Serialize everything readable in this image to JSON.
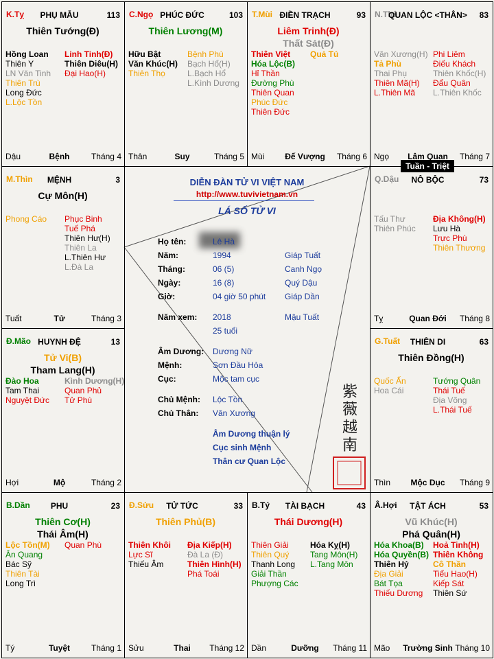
{
  "palaces": [
    {
      "stem": {
        "text": "K.Tỵ",
        "color": "#e00000"
      },
      "name": "PHỤ MẪU",
      "number": 113,
      "main_stars": [
        {
          "text": "Thiên Tướng(Đ)",
          "color": "#000000"
        }
      ],
      "left_stars": [
        {
          "text": "Hồng Loan",
          "color": "#000000",
          "bold": true
        },
        {
          "text": "Thiên Y",
          "color": "#000000"
        },
        {
          "text": "LN Văn Tinh",
          "color": "#8c8c8c"
        },
        {
          "text": "Thiên Trù",
          "color": "#f0a000"
        },
        {
          "text": "Long Đức",
          "color": "#000000"
        },
        {
          "text": "L.Lộc Tồn",
          "color": "#f0a000"
        }
      ],
      "right_stars": [
        {
          "text": "Linh Tinh(Đ)",
          "color": "#e00000",
          "bold": true
        },
        {
          "text": "Thiên Diêu(H)",
          "color": "#000000",
          "bold": true
        },
        {
          "text": "Đại Hao(H)",
          "color": "#e00000"
        }
      ],
      "branch": "Dậu",
      "stage": "Bệnh",
      "month": "Tháng 4"
    },
    {
      "stem": {
        "text": "C.Ngọ",
        "color": "#e00000"
      },
      "name": "PHÚC ĐỨC",
      "number": 103,
      "main_stars": [
        {
          "text": "Thiên Lương(M)",
          "color": "#008000"
        }
      ],
      "left_stars": [
        {
          "text": "Hữu Bật",
          "color": "#000000",
          "bold": true
        },
        {
          "text": "Văn Khúc(H)",
          "color": "#000000",
          "bold": true
        },
        {
          "text": "Thiên Thọ",
          "color": "#f0a000"
        }
      ],
      "right_stars": [
        {
          "text": "Bệnh Phù",
          "color": "#f0a000"
        },
        {
          "text": "Bạch Hổ(H)",
          "color": "#8c8c8c"
        },
        {
          "text": "L.Bạch Hổ",
          "color": "#8c8c8c"
        },
        {
          "text": "L.Kình Dương",
          "color": "#8c8c8c"
        }
      ],
      "branch": "Thân",
      "stage": "Suy",
      "month": "Tháng 5"
    },
    {
      "stem": {
        "text": "T.Mùi",
        "color": "#f0a000"
      },
      "name": "ĐIỀN TRẠCH",
      "number": 93,
      "main_stars": [
        {
          "text": "Liêm Trinh(Đ)",
          "color": "#e00000"
        },
        {
          "text": "Thất Sát(Đ)",
          "color": "#8c8c8c"
        }
      ],
      "left_stars": [
        {
          "text": "Thiên Việt",
          "color": "#e00000",
          "bold": true
        },
        {
          "text": "Hóa Lộc(B)",
          "color": "#008000",
          "bold": true
        },
        {
          "text": "Hỉ Thần",
          "color": "#e00000"
        },
        {
          "text": "Đường Phù",
          "color": "#008000"
        },
        {
          "text": "Thiên Quan",
          "color": "#e00000"
        },
        {
          "text": "Phúc Đức",
          "color": "#f0a000"
        },
        {
          "text": "Thiên Đức",
          "color": "#e00000"
        }
      ],
      "right_stars": [
        {
          "text": "Quả Tú",
          "color": "#f0a000",
          "bold": true
        }
      ],
      "branch": "Mùi",
      "stage": "Đế Vượng",
      "month": "Tháng 6"
    },
    {
      "stem": {
        "text": "N.Thâ",
        "color": "#8c8c8c"
      },
      "name": "QUAN LỘC <THÂN>",
      "number": 83,
      "main_stars": [],
      "left_stars": [
        {
          "text": "Văn Xương(H)",
          "color": "#8c8c8c"
        },
        {
          "text": "Tả Phù",
          "color": "#f0a000",
          "bold": true
        },
        {
          "text": "Thai Phụ",
          "color": "#8c8c8c"
        },
        {
          "text": "Thiên Mã(H)",
          "color": "#e00000"
        },
        {
          "text": "L.Thiên Mã",
          "color": "#e00000"
        }
      ],
      "right_stars": [
        {
          "text": "Phi Liêm",
          "color": "#e00000"
        },
        {
          "text": "Điếu Khách",
          "color": "#e00000"
        },
        {
          "text": "Thiên Khốc(H)",
          "color": "#8c8c8c"
        },
        {
          "text": "Đẩu Quân",
          "color": "#e00000"
        },
        {
          "text": "L.Thiên Khốc",
          "color": "#8c8c8c"
        }
      ],
      "branch": "Ngọ",
      "stage": "Lâm Quan",
      "month": "Tháng 7"
    },
    {
      "stem": {
        "text": "M.Thìn",
        "color": "#f0a000"
      },
      "name": "MỆNH",
      "number": 3,
      "main_stars": [
        {
          "text": "Cự Môn(H)",
          "color": "#000000"
        }
      ],
      "left_stars": [
        {
          "text": "Phong Cáo",
          "color": "#f0a000"
        }
      ],
      "right_stars": [
        {
          "text": "Phục Binh",
          "color": "#e00000"
        },
        {
          "text": "Tuế Phá",
          "color": "#e00000"
        },
        {
          "text": "Thiên Hư(H)",
          "color": "#000000"
        },
        {
          "text": "Thiên La",
          "color": "#8c8c8c"
        },
        {
          "text": "L.Thiên Hư",
          "color": "#000000"
        },
        {
          "text": "L.Đà La",
          "color": "#8c8c8c"
        }
      ],
      "branch": "Tuất",
      "stage": "Tử",
      "month": "Tháng 3"
    },
    {
      "stem": {
        "text": "Q.Dậu",
        "color": "#8c8c8c"
      },
      "name": "NÔ BỘC",
      "number": 73,
      "main_stars": [],
      "left_stars": [
        {
          "text": "Tấu Thư",
          "color": "#8c8c8c"
        },
        {
          "text": "Thiên Phúc",
          "color": "#8c8c8c"
        }
      ],
      "right_stars": [
        {
          "text": "Địa Không(H)",
          "color": "#e00000",
          "bold": true
        },
        {
          "text": "Lưu Hà",
          "color": "#000000"
        },
        {
          "text": "Trực Phù",
          "color": "#e00000"
        },
        {
          "text": "Thiên Thương",
          "color": "#f0a000"
        }
      ],
      "branch": "Tỵ",
      "stage": "Quan Đới",
      "month": "Tháng 8"
    },
    {
      "stem": {
        "text": "Đ.Mão",
        "color": "#008000"
      },
      "name": "HUYNH ĐỆ",
      "number": 13,
      "main_stars": [
        {
          "text": "Tử Vi(B)",
          "color": "#f0a000"
        },
        {
          "text": "Tham Lang(H)",
          "color": "#000000"
        }
      ],
      "left_stars": [
        {
          "text": "Đào Hoa",
          "color": "#008000",
          "bold": true
        },
        {
          "text": "Tam Thai",
          "color": "#000000"
        },
        {
          "text": "Nguyệt Đức",
          "color": "#e00000"
        }
      ],
      "right_stars": [
        {
          "text": "Kình Dương(H)",
          "color": "#8c8c8c",
          "bold": true
        },
        {
          "text": "Quan Phủ",
          "color": "#e00000"
        },
        {
          "text": "Tử Phù",
          "color": "#e00000"
        }
      ],
      "branch": "Hợi",
      "stage": "Mộ",
      "month": "Tháng 2"
    },
    {
      "stem": {
        "text": "G.Tuất",
        "color": "#f0a000"
      },
      "name": "THIÊN DI",
      "number": 63,
      "main_stars": [
        {
          "text": "Thiên Đồng(H)",
          "color": "#000000"
        }
      ],
      "left_stars": [
        {
          "text": "Quốc Ấn",
          "color": "#f0a000"
        },
        {
          "text": "Hoa Cái",
          "color": "#8c8c8c"
        }
      ],
      "right_stars": [
        {
          "text": "Tướng Quân",
          "color": "#008000"
        },
        {
          "text": "Thái Tuế",
          "color": "#e00000"
        },
        {
          "text": "Địa Võng",
          "color": "#8c8c8c"
        },
        {
          "text": "L.Thái Tuế",
          "color": "#e00000"
        }
      ],
      "branch": "Thìn",
      "stage": "Mộc Dục",
      "month": "Tháng 9"
    },
    {
      "stem": {
        "text": "B.Dần",
        "color": "#008000"
      },
      "name": "PHU",
      "number": 23,
      "main_stars": [
        {
          "text": "Thiên Cơ(H)",
          "color": "#008000"
        },
        {
          "text": "Thái Âm(H)",
          "color": "#000000"
        }
      ],
      "left_stars": [
        {
          "text": "Lộc Tồn(M)",
          "color": "#f0a000",
          "bold": true
        },
        {
          "text": "Ân Quang",
          "color": "#008000"
        },
        {
          "text": "Bác Sỹ",
          "color": "#000000"
        },
        {
          "text": "Thiên Tài",
          "color": "#f0a000"
        },
        {
          "text": "Long Trì",
          "color": "#000000"
        }
      ],
      "right_stars": [
        {
          "text": "Quan Phù",
          "color": "#e00000"
        }
      ],
      "branch": "Tý",
      "stage": "Tuyệt",
      "month": "Tháng 1"
    },
    {
      "stem": {
        "text": "Đ.Sửu",
        "color": "#f0a000"
      },
      "name": "TỬ TỨC",
      "number": 33,
      "main_stars": [
        {
          "text": "Thiên Phủ(B)",
          "color": "#f0a000"
        }
      ],
      "left_stars": [
        {
          "text": "Thiên Khôi",
          "color": "#e00000",
          "bold": true
        },
        {
          "text": "Lực Sĩ",
          "color": "#e00000"
        },
        {
          "text": "Thiếu Âm",
          "color": "#000000"
        }
      ],
      "right_stars": [
        {
          "text": "Địa Kiếp(H)",
          "color": "#e00000",
          "bold": true
        },
        {
          "text": "Đà La (Đ)",
          "color": "#8c8c8c"
        },
        {
          "text": "Thiên Hình(H)",
          "color": "#e00000",
          "bold": true
        },
        {
          "text": "Phá Toái",
          "color": "#e00000"
        }
      ],
      "branch": "Sửu",
      "stage": "Thai",
      "month": "Tháng 12"
    },
    {
      "stem": {
        "text": "B.Tý",
        "color": "#000000"
      },
      "name": "TÀI BẠCH",
      "number": 43,
      "main_stars": [
        {
          "text": "Thái Dương(H)",
          "color": "#e00000"
        }
      ],
      "left_stars": [
        {
          "text": "Thiên Giải",
          "color": "#e00000"
        },
        {
          "text": "Thiên Quý",
          "color": "#f0a000"
        },
        {
          "text": "Thanh Long",
          "color": "#000000"
        },
        {
          "text": "Giải Thần",
          "color": "#008000"
        },
        {
          "text": "Phượng Các",
          "color": "#008000"
        }
      ],
      "right_stars": [
        {
          "text": "Hóa Kỵ(H)",
          "color": "#000000",
          "bold": true
        },
        {
          "text": "Tang Môn(H)",
          "color": "#008000"
        },
        {
          "text": "L.Tang Môn",
          "color": "#008000"
        }
      ],
      "branch": "Dần",
      "stage": "Dưỡng",
      "month": "Tháng 11"
    },
    {
      "stem": {
        "text": "Â.Hợi",
        "color": "#000000"
      },
      "name": "TẬT ÁCH",
      "number": 53,
      "main_stars": [
        {
          "text": "Vũ Khúc(H)",
          "color": "#8c8c8c"
        },
        {
          "text": "Phá Quân(H)",
          "color": "#000000"
        }
      ],
      "left_stars": [
        {
          "text": "Hóa Khoa(B)",
          "color": "#008000",
          "bold": true
        },
        {
          "text": "Hóa Quyền(B)",
          "color": "#008000",
          "bold": true
        },
        {
          "text": "Thiên Hỷ",
          "color": "#000000",
          "bold": true
        },
        {
          "text": "Địa Giải",
          "color": "#f0a000"
        },
        {
          "text": "Bát Tọa",
          "color": "#008000"
        },
        {
          "text": "Thiếu Dương",
          "color": "#e00000"
        }
      ],
      "right_stars": [
        {
          "text": "Hoả Tinh(H)",
          "color": "#e00000",
          "bold": true
        },
        {
          "text": "Thiên Không",
          "color": "#e00000",
          "bold": true
        },
        {
          "text": "Cô Thần",
          "color": "#f0a000",
          "bold": true
        },
        {
          "text": "Tiểu Hao(H)",
          "color": "#e00000"
        },
        {
          "text": "Kiếp Sát",
          "color": "#e00000"
        },
        {
          "text": "Thiên Sứ",
          "color": "#000000"
        }
      ],
      "branch": "Mão",
      "stage": "Trường Sinh",
      "month": "Tháng 10"
    }
  ],
  "tuan_triet": "Tuần - Triệt",
  "center": {
    "forum": "DIỄN ĐÀN TỬ VI VIỆT NAM",
    "url": "http://www.tuvivietnam.vn",
    "title": "LÁ SỐ TỬ VI",
    "fields": [
      {
        "label": "Họ tên:",
        "value": "Lê Hà"
      },
      {
        "label": "Năm:",
        "value": "1994",
        "extra": "Giáp Tuất"
      },
      {
        "label": "Tháng:",
        "value": "06 (5)",
        "extra": "Canh Ngọ"
      },
      {
        "label": "Ngày:",
        "value": "16 (8)",
        "extra": "Quý Dậu"
      },
      {
        "label": "Giờ:",
        "value": "04 giờ 50 phút",
        "extra": "Giáp Dần"
      },
      {
        "label": "Năm xem:",
        "value": "2018",
        "extra": "Mậu Tuất"
      },
      {
        "value": "25 tuổi"
      },
      {
        "label": "Âm Dương:",
        "value": "Dương Nữ"
      },
      {
        "label": "Mệnh:",
        "value": "Sơn Đầu Hỏa"
      },
      {
        "label": "Cục:",
        "value": "Mộc tam cục"
      },
      {
        "label": "Chủ Mệnh:",
        "value": "Lộc Tồn"
      },
      {
        "label": "Chủ Thân:",
        "value": "Văn Xương"
      }
    ],
    "notes": [
      "Âm Dương thuận lý",
      "Cục sinh Mệnh",
      "Thân cư Quan Lộc"
    ],
    "seal": "紫薇越南"
  }
}
